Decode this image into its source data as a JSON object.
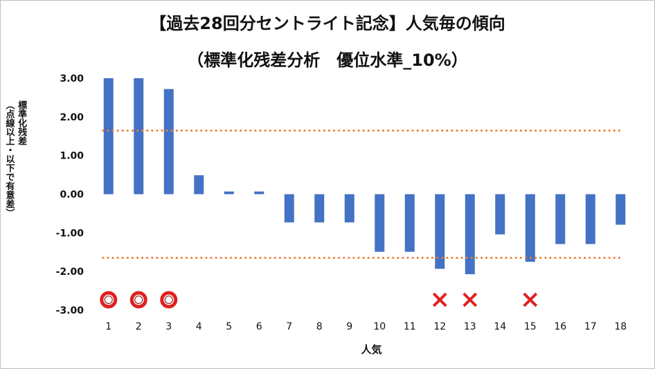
{
  "chart_data": {
    "type": "bar",
    "title": "【過去28回分セントライト記念】人気毎の傾向",
    "subtitle": "（標準化残差分析　優位水準_10%）",
    "xlabel": "人気",
    "ylabel": "標準化残差\n（点線以上・以下で有意差）",
    "ylim": [
      -3.0,
      3.0
    ],
    "yticks": [
      "3.00",
      "2.00",
      "1.00",
      "0.00",
      "-1.00",
      "-2.00",
      "-3.00"
    ],
    "categories": [
      "1",
      "2",
      "3",
      "4",
      "5",
      "6",
      "7",
      "8",
      "9",
      "10",
      "11",
      "12",
      "13",
      "14",
      "15",
      "16",
      "17",
      "18"
    ],
    "values": [
      3.0,
      3.0,
      2.72,
      0.49,
      0.07,
      0.07,
      -0.73,
      -0.73,
      -0.73,
      -1.49,
      -1.49,
      -1.93,
      -2.07,
      -1.04,
      -1.75,
      -1.29,
      -1.29,
      -0.79
    ],
    "thresholds": [
      1.645,
      -1.645
    ],
    "markers": [
      {
        "category": "1",
        "symbol": "circle"
      },
      {
        "category": "2",
        "symbol": "circle"
      },
      {
        "category": "3",
        "symbol": "circle"
      },
      {
        "category": "12",
        "symbol": "cross"
      },
      {
        "category": "13",
        "symbol": "cross"
      },
      {
        "category": "15",
        "symbol": "cross"
      }
    ],
    "grid": false,
    "colors": {
      "bar": "#4472c4",
      "threshold": "#ed7d31",
      "marker": "#e02020"
    }
  }
}
